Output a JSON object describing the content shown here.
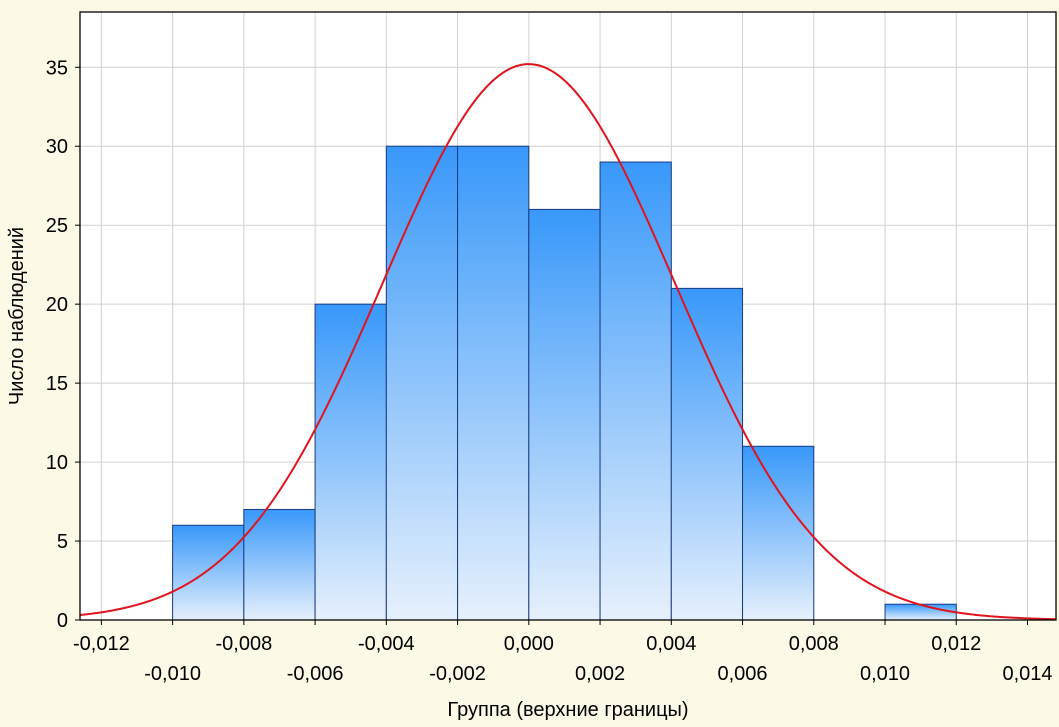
{
  "chart_data": {
    "type": "bar",
    "xlabel": "Группа (верхние границы)",
    "ylabel": "Число наблюдений",
    "xlim": [
      -0.0126,
      0.0148
    ],
    "ylim": [
      0,
      38.5
    ],
    "x_ticks": [
      -0.012,
      -0.01,
      -0.008,
      -0.006,
      -0.004,
      -0.002,
      0.0,
      0.002,
      0.004,
      0.006,
      0.008,
      0.01,
      0.012,
      0.014
    ],
    "x_tick_labels": [
      "-0,012",
      "-0,010",
      "-0,008",
      "-0,006",
      "-0,004",
      "-0,002",
      "0,000",
      "0,002",
      "0,004",
      "0,006",
      "0,008",
      "0,010",
      "0,012",
      "0,014"
    ],
    "y_ticks": [
      0,
      5,
      10,
      15,
      20,
      25,
      30,
      35
    ],
    "y_tick_labels": [
      "0",
      "5",
      "10",
      "15",
      "20",
      "25",
      "30",
      "35"
    ],
    "bins": [
      {
        "from": -0.01,
        "to": -0.008,
        "count": 6
      },
      {
        "from": -0.008,
        "to": -0.006,
        "count": 7
      },
      {
        "from": -0.006,
        "to": -0.004,
        "count": 20
      },
      {
        "from": -0.004,
        "to": -0.002,
        "count": 30
      },
      {
        "from": -0.002,
        "to": 0.0,
        "count": 30
      },
      {
        "from": 0.0,
        "to": 0.002,
        "count": 26
      },
      {
        "from": 0.002,
        "to": 0.004,
        "count": 29
      },
      {
        "from": 0.004,
        "to": 0.006,
        "count": 21
      },
      {
        "from": 0.006,
        "to": 0.008,
        "count": 11
      },
      {
        "from": 0.008,
        "to": 0.01,
        "count": 0
      },
      {
        "from": 0.01,
        "to": 0.012,
        "count": 1
      }
    ],
    "normal_curve": {
      "mean": 0.0,
      "std": 0.0041,
      "peak": 35.2,
      "color": "#e0141e"
    },
    "bar_gradient": {
      "top": "#3898fa",
      "bottom": "#e6f0fc",
      "stroke": "#1a3a80"
    },
    "grid": true
  }
}
